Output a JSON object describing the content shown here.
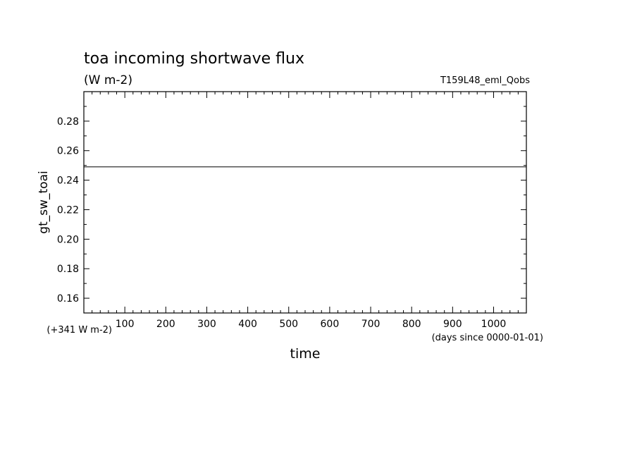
{
  "chart_data": {
    "type": "line",
    "title": "toa incoming shortwave flux",
    "units": "(W m-2)",
    "run_label": "T159L48_eml_Qobs",
    "ylabel": "gt_sw_toai",
    "xlabel": "time",
    "x_units_note": "(days since 0000-01-01)",
    "y_offset_note": "(+341 W m-2)",
    "xlim": [
      0,
      1080
    ],
    "ylim": [
      0.15,
      0.3
    ],
    "x_ticks": [
      100,
      200,
      300,
      400,
      500,
      600,
      700,
      800,
      900,
      1000
    ],
    "x_tick_labels": [
      "100",
      "200",
      "300",
      "400",
      "500",
      "600",
      "700",
      "800",
      "900",
      "1000"
    ],
    "y_ticks": [
      0.16,
      0.18,
      0.2,
      0.22,
      0.24,
      0.26,
      0.28
    ],
    "y_tick_labels": [
      "0.16",
      "0.18",
      "0.20",
      "0.22",
      "0.24",
      "0.26",
      "0.28"
    ],
    "series": [
      {
        "x": [
          0,
          100,
          200,
          300,
          400,
          500,
          600,
          700,
          800,
          900,
          1000,
          1080
        ],
        "values": [
          0.249,
          0.249,
          0.249,
          0.249,
          0.249,
          0.249,
          0.249,
          0.249,
          0.249,
          0.249,
          0.249,
          0.249
        ]
      }
    ],
    "grid": false,
    "legend": "none"
  }
}
